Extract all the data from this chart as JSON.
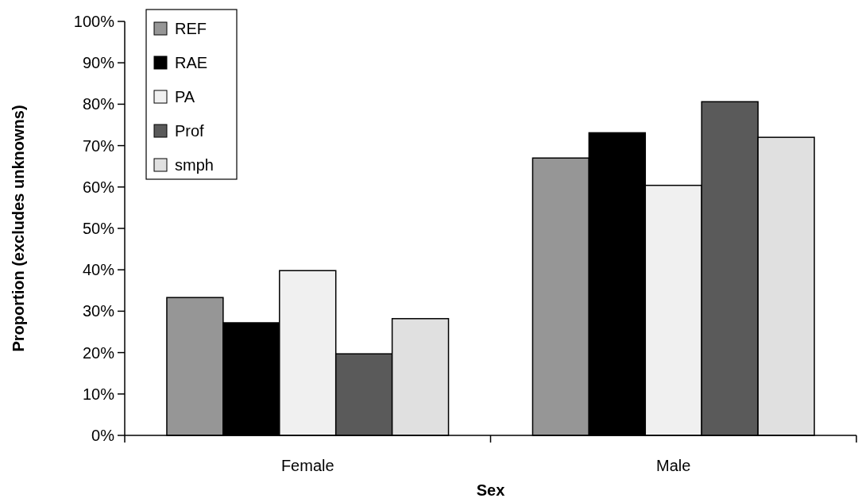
{
  "chart_data": {
    "type": "bar",
    "xlabel": "Sex",
    "ylabel": "Proportion (excludes unknowns)",
    "categories": [
      "Female",
      "Male"
    ],
    "series": [
      {
        "name": "REF",
        "color": "#969696",
        "values": [
          33.3,
          67.0
        ]
      },
      {
        "name": "RAE",
        "color": "#000000",
        "values": [
          27.2,
          73.1
        ]
      },
      {
        "name": "PA",
        "color": "#f0f0f0",
        "values": [
          39.8,
          60.4
        ]
      },
      {
        "name": "Prof",
        "color": "#5a5a5a",
        "values": [
          19.7,
          80.6
        ]
      },
      {
        "name": "smph",
        "color": "#e0e0e0",
        "values": [
          28.2,
          72.0
        ]
      }
    ],
    "ylim": [
      0,
      100
    ],
    "yticks": [
      {
        "value": 0,
        "label": "0%"
      },
      {
        "value": 10,
        "label": "10%"
      },
      {
        "value": 20,
        "label": "20%"
      },
      {
        "value": 30,
        "label": "30%"
      },
      {
        "value": 40,
        "label": "40%"
      },
      {
        "value": 50,
        "label": "50%"
      },
      {
        "value": 60,
        "label": "60%"
      },
      {
        "value": 70,
        "label": "70%"
      },
      {
        "value": 80,
        "label": "80%"
      },
      {
        "value": 90,
        "label": "90%"
      },
      {
        "value": 100,
        "label": "100%"
      }
    ],
    "legend": "top left"
  }
}
